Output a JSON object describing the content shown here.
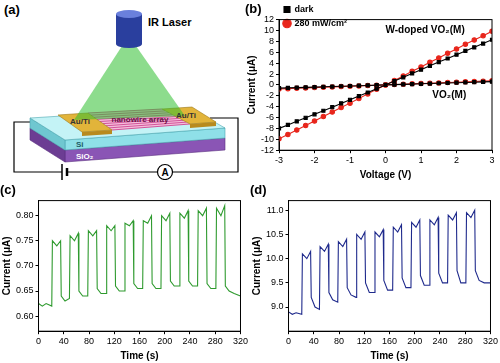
{
  "diagram": {
    "panel": "(a)",
    "laser": "IR Laser",
    "electrodes": [
      "Au/Ti",
      "Au/Ti"
    ],
    "channel": "nanowire array",
    "substrate": "Si",
    "oxide": "SiO₂",
    "meter": "A"
  },
  "chart_data": [
    {
      "type": "line",
      "title": "(b)",
      "x_label": "Voltage (V)",
      "y_label": "Current (μA)",
      "x": [
        -3,
        -2.75,
        -2.5,
        -2.25,
        -2,
        -1.75,
        -1.5,
        -1.25,
        -1,
        -0.75,
        -0.5,
        -0.25,
        0,
        0.25,
        0.5,
        0.75,
        1,
        1.25,
        1.5,
        1.75,
        2,
        2.25,
        2.5,
        2.75,
        3
      ],
      "series": [
        {
          "name": "dark",
          "color": "#000000",
          "marker": "square",
          "line_style": "solid",
          "values": [
            -8.0,
            -7.35,
            -6.7,
            -6.05,
            -5.4,
            -4.75,
            -4.1,
            -3.4,
            -2.75,
            -2.05,
            -1.4,
            -0.7,
            0,
            0.7,
            1.4,
            2.1,
            2.8,
            3.5,
            4.2,
            4.85,
            5.55,
            6.25,
            6.9,
            7.6,
            8.3
          ]
        },
        {
          "name": "280 mW/cm²",
          "color": "#e8261c",
          "marker": "circle",
          "line_style": "solid",
          "values": [
            -9.9,
            -9.1,
            -8.3,
            -7.45,
            -6.65,
            -5.8,
            -5.0,
            -4.15,
            -3.35,
            -2.5,
            -1.65,
            -0.8,
            0,
            0.8,
            1.65,
            2.5,
            3.3,
            4.15,
            4.95,
            5.8,
            6.6,
            7.45,
            8.25,
            9.05,
            9.85
          ]
        },
        {
          "name": "dark",
          "color": "#000000",
          "marker": "square",
          "line_style": "solid",
          "values": [
            -0.6,
            -0.55,
            -0.5,
            -0.45,
            -0.4,
            -0.35,
            -0.3,
            -0.25,
            -0.2,
            -0.15,
            -0.1,
            -0.05,
            0,
            0.05,
            0.1,
            0.15,
            0.2,
            0.25,
            0.3,
            0.35,
            0.4,
            0.45,
            0.5,
            0.55,
            0.6
          ]
        },
        {
          "name": "280 mW/cm²",
          "color": "#e8261c",
          "marker": "circle",
          "line_style": "solid",
          "values": [
            -0.75,
            -0.69,
            -0.62,
            -0.56,
            -0.5,
            -0.44,
            -0.37,
            -0.31,
            -0.25,
            -0.19,
            -0.12,
            -0.06,
            0,
            0.06,
            0.12,
            0.19,
            0.25,
            0.31,
            0.37,
            0.44,
            0.5,
            0.56,
            0.62,
            0.69,
            0.75
          ]
        }
      ],
      "xlim": [
        -3,
        3
      ],
      "xticks": [
        -3,
        -2,
        -1,
        0,
        1,
        2,
        3
      ],
      "ylim": [
        -12,
        12
      ],
      "yticks": [
        -12,
        -10,
        -8,
        -6,
        -4,
        -2,
        0,
        2,
        4,
        6,
        8,
        10,
        12
      ],
      "legend": "upper left",
      "grid": false,
      "annotations": [
        "W-doped VO₂(M)",
        "VO₂(M)"
      ]
    },
    {
      "type": "line",
      "title": "(c)",
      "x_label": "Time (s)",
      "y_label": "Current (μA)",
      "x": [
        0,
        6,
        12,
        21,
        22,
        29,
        35,
        36,
        42,
        49,
        50,
        57,
        63,
        64,
        70,
        78,
        79,
        86,
        92,
        93,
        99,
        107,
        108,
        115,
        121,
        122,
        128,
        136,
        137,
        144,
        150,
        151,
        157,
        165,
        166,
        173,
        179,
        180,
        186,
        194,
        195,
        202,
        208,
        209,
        215,
        223,
        224,
        231,
        237,
        238,
        244,
        252,
        253,
        260,
        266,
        267,
        273,
        281,
        282,
        289,
        295,
        296,
        302,
        310,
        320
      ],
      "values": [
        0.625,
        0.62,
        0.625,
        0.62,
        0.75,
        0.74,
        0.75,
        0.64,
        0.63,
        0.635,
        0.76,
        0.75,
        0.765,
        0.65,
        0.64,
        0.64,
        0.77,
        0.76,
        0.77,
        0.655,
        0.645,
        0.645,
        0.78,
        0.77,
        0.78,
        0.66,
        0.65,
        0.65,
        0.785,
        0.78,
        0.79,
        0.665,
        0.655,
        0.655,
        0.79,
        0.785,
        0.8,
        0.665,
        0.655,
        0.655,
        0.8,
        0.79,
        0.805,
        0.67,
        0.66,
        0.66,
        0.805,
        0.795,
        0.81,
        0.67,
        0.66,
        0.66,
        0.81,
        0.8,
        0.815,
        0.665,
        0.655,
        0.655,
        0.815,
        0.8,
        0.82,
        0.66,
        0.65,
        0.645,
        0.64
      ],
      "color": "#2e9a2e",
      "xlim": [
        0,
        320
      ],
      "xticks": [
        0,
        40,
        80,
        120,
        160,
        200,
        240,
        280,
        320
      ],
      "ylim": [
        0.57,
        0.83
      ],
      "yticks": [
        {
          "value": 0.6,
          "label": "0.60"
        },
        0.65,
        {
          "value": 0.7,
          "label": "0.70"
        },
        0.75,
        {
          "value": 0.8,
          "label": "0.80"
        }
      ],
      "grid": false
    },
    {
      "type": "line",
      "title": "(d)",
      "x_label": "Time (s)",
      "y_label": "Current (μA)",
      "x": [
        0,
        6,
        12,
        21,
        22,
        29,
        35,
        36,
        42,
        49,
        50,
        57,
        63,
        64,
        70,
        78,
        79,
        86,
        92,
        93,
        99,
        107,
        108,
        115,
        121,
        122,
        128,
        136,
        137,
        144,
        150,
        151,
        157,
        165,
        166,
        173,
        179,
        180,
        186,
        194,
        195,
        202,
        208,
        209,
        215,
        223,
        224,
        231,
        237,
        238,
        244,
        252,
        253,
        260,
        266,
        267,
        273,
        281,
        282,
        289,
        295,
        296,
        302,
        310,
        320
      ],
      "values": [
        8.9,
        8.85,
        8.88,
        8.85,
        10.1,
        10.0,
        10.15,
        9.2,
        9.0,
        8.95,
        10.25,
        10.15,
        10.3,
        9.3,
        9.15,
        9.1,
        10.35,
        10.25,
        10.4,
        9.4,
        9.25,
        9.2,
        10.5,
        10.4,
        10.55,
        9.5,
        9.3,
        9.3,
        10.55,
        10.45,
        10.6,
        9.55,
        9.35,
        9.35,
        10.65,
        10.55,
        10.7,
        9.6,
        9.4,
        9.4,
        10.75,
        10.65,
        10.8,
        9.65,
        9.45,
        9.45,
        10.8,
        10.7,
        10.85,
        9.7,
        9.5,
        9.5,
        10.9,
        10.8,
        10.95,
        9.75,
        9.5,
        9.5,
        10.95,
        10.85,
        11.0,
        9.75,
        9.55,
        9.5,
        9.5
      ],
      "color": "#1f2a8c",
      "xlim": [
        0,
        320
      ],
      "xticks": [
        0,
        40,
        80,
        120,
        160,
        200,
        240,
        280,
        320
      ],
      "ylim": [
        8.5,
        11.2
      ],
      "yticks": [
        {
          "value": 9,
          "label": "9.0"
        },
        9.5,
        {
          "value": 10,
          "label": "10.0"
        },
        10.5,
        {
          "value": 11,
          "label": "11.0"
        }
      ],
      "grid": false
    }
  ]
}
